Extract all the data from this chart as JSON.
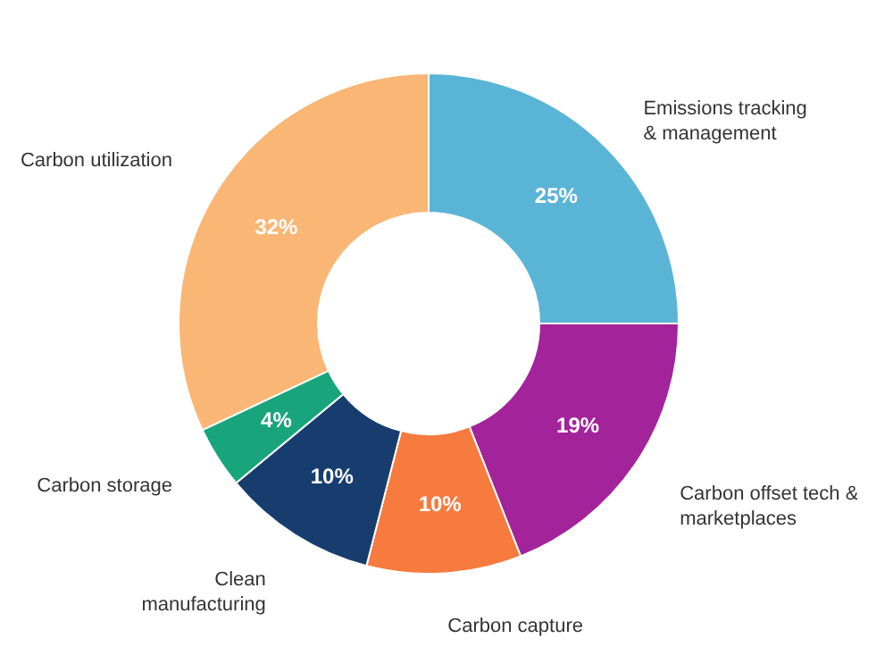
{
  "chart_data": {
    "type": "donut",
    "categories": [
      "Emissions tracking\n& management",
      "Carbon offset tech &\nmarketplaces",
      "Carbon capture",
      "Clean\nmanufacturing",
      "Carbon storage",
      "Carbon utilization"
    ],
    "values": [
      25,
      19,
      10,
      10,
      4,
      32
    ],
    "value_labels": [
      "25%",
      "19%",
      "10%",
      "10%",
      "4%",
      "32%"
    ],
    "colors": [
      "#5ab4d6",
      "#a3239b",
      "#f77a3e",
      "#173d6e",
      "#18a57b",
      "#f9b675"
    ]
  }
}
